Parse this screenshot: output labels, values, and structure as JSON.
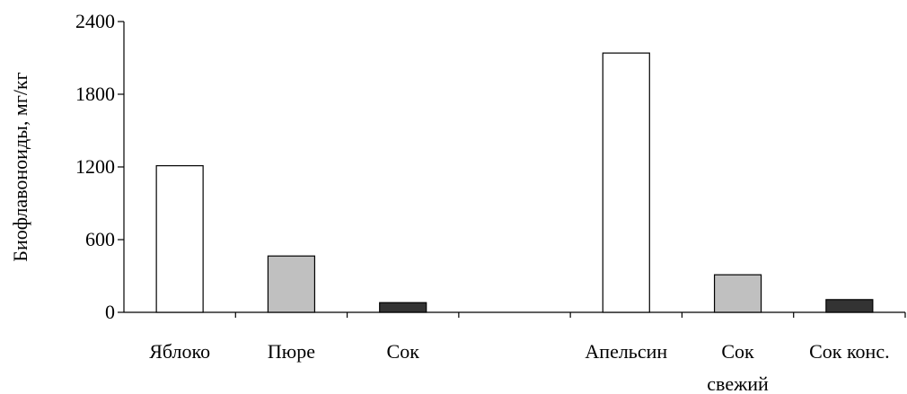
{
  "chart_data": {
    "type": "bar",
    "ylabel": "Биофлавоноиды, мг/кг",
    "ylim": [
      0,
      2400
    ],
    "yticks": [
      "0",
      "600",
      "1200",
      "1800",
      "2400"
    ],
    "grid": false,
    "categories": [
      {
        "label_lines": [
          "Яблоко"
        ],
        "value": 1210,
        "color": "#ffffff"
      },
      {
        "label_lines": [
          "Пюре"
        ],
        "value": 465,
        "color": "#c0c0c0"
      },
      {
        "label_lines": [
          "Сок"
        ],
        "value": 80,
        "color": "#333333"
      },
      {
        "label_lines": [],
        "value": null,
        "color": null
      },
      {
        "label_lines": [
          "Апельсин"
        ],
        "value": 2140,
        "color": "#ffffff"
      },
      {
        "label_lines": [
          "Сок",
          "свежий"
        ],
        "value": 310,
        "color": "#c0c0c0"
      },
      {
        "label_lines": [
          "Сок конс."
        ],
        "value": 105,
        "color": "#333333"
      }
    ]
  }
}
